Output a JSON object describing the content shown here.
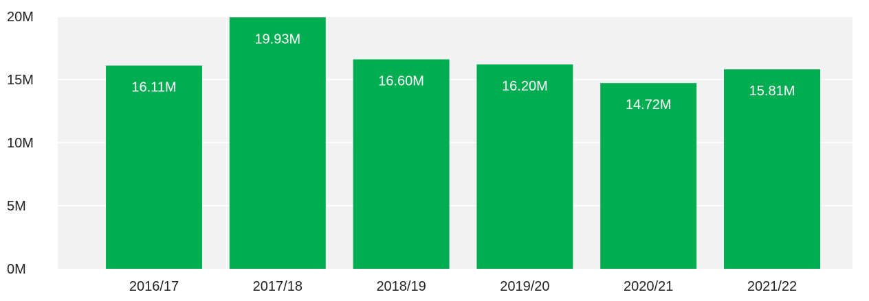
{
  "chart_data": {
    "type": "bar",
    "title": "",
    "xlabel": "",
    "ylabel": "",
    "categories": [
      "2016/17",
      "2017/18",
      "2018/19",
      "2019/20",
      "2020/21",
      "2021/22"
    ],
    "values": [
      16.11,
      19.93,
      16.6,
      16.2,
      14.72,
      15.81
    ],
    "data_labels": [
      "16.11M",
      "19.93M",
      "16.60M",
      "16.20M",
      "14.72M",
      "15.81M"
    ],
    "ylim": [
      0,
      20
    ],
    "y_ticks": [
      {
        "value": 0,
        "label": "0M"
      },
      {
        "value": 5,
        "label": "5M"
      },
      {
        "value": 10,
        "label": "10M"
      },
      {
        "value": 15,
        "label": "15M"
      },
      {
        "value": 20,
        "label": "20M"
      }
    ],
    "grid": true,
    "legend": "none",
    "colors": {
      "bar": "#00ad50",
      "plot_background": "#f2f2f2",
      "gridline": "#ffffff",
      "tick_text": "#222222",
      "data_label_text": "#ffffff"
    }
  }
}
